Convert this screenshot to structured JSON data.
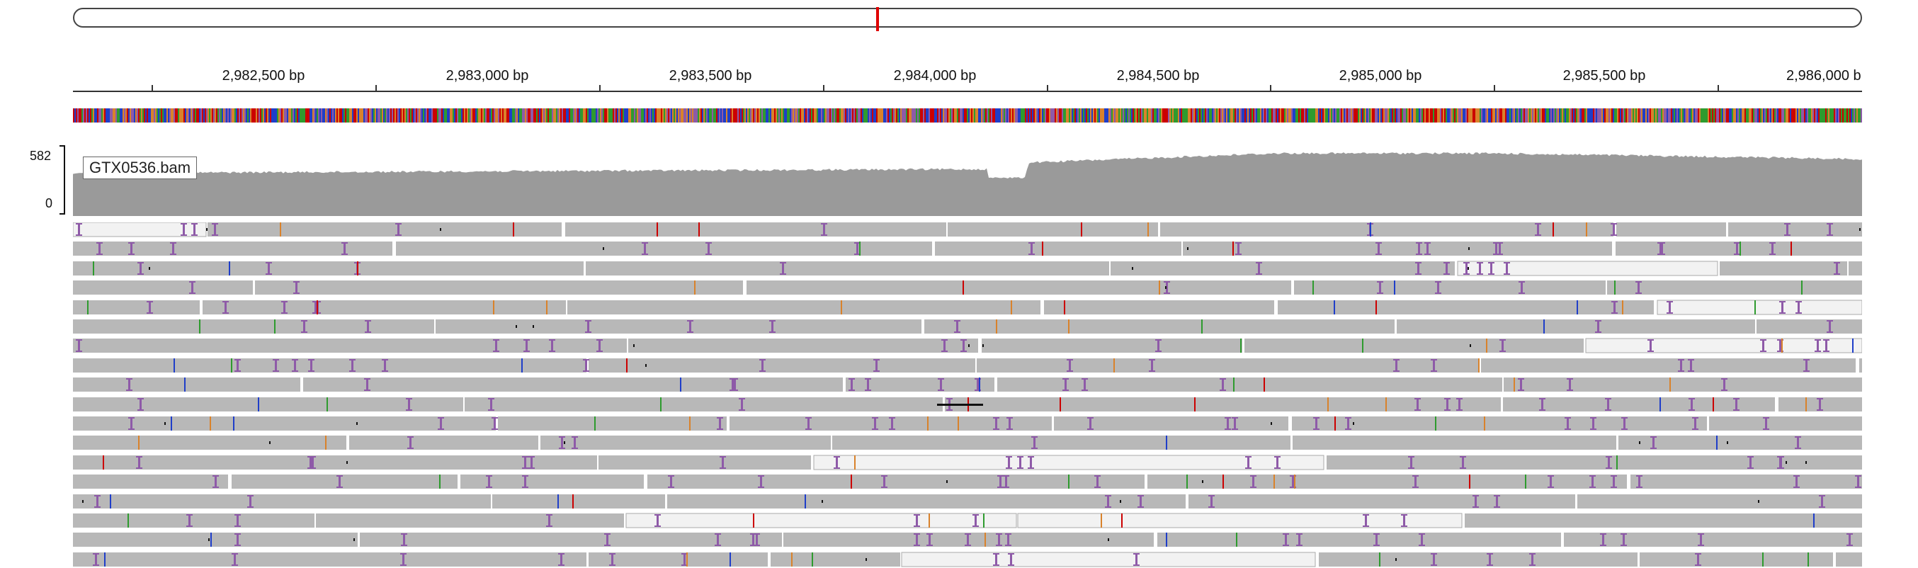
{
  "ideogram": {
    "current_region_marker": "red"
  },
  "ruler": {
    "ticks": [
      "2,982,500 bp",
      "2,983,000 bp",
      "2,983,500 bp",
      "2,984,000 bp",
      "2,984,500 bp",
      "2,985,000 bp",
      "2,985,500 bp",
      "2,986,000 b"
    ]
  },
  "coverage": {
    "track_name": "GTX0536.bam",
    "scale_max": "582",
    "scale_min": "0",
    "fill_color": "#9a9a9a"
  },
  "alignment": {
    "read_color": "#b8b8b8",
    "insertion_color": "#8e5aa8",
    "mismatch_colors": [
      "#cc0000",
      "#1f3ec9",
      "#2e9b2e",
      "#d9822b"
    ]
  },
  "sequence_track": {
    "base_colors": [
      "#2e9b2e",
      "#1f3ec9",
      "#d9822b",
      "#cc0000",
      "#8e5aa8"
    ]
  }
}
